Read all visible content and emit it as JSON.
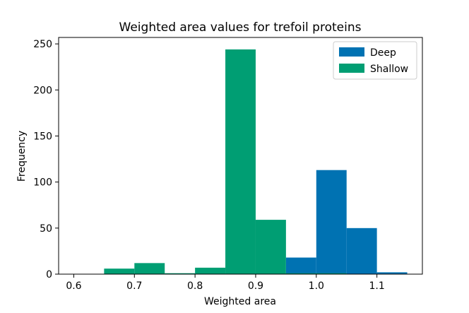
{
  "chart_data": {
    "type": "histogram",
    "title": "Weighted area values for trefoil proteins",
    "xlabel": "Weighted area",
    "ylabel": "Frequency",
    "xlim": [
      0.575,
      1.175
    ],
    "ylim": [
      0,
      257
    ],
    "xticks": [
      0.6,
      0.7,
      0.8,
      0.9,
      1.0,
      1.1
    ],
    "xtick_labels": [
      "0.6",
      "0.7",
      "0.8",
      "0.9",
      "1.0",
      "1.1"
    ],
    "yticks": [
      0,
      50,
      100,
      150,
      200,
      250
    ],
    "ytick_labels": [
      "0",
      "50",
      "100",
      "150",
      "200",
      "250"
    ],
    "legend_position": "top-right",
    "series": [
      {
        "name": "Deep",
        "color": "#0072B2",
        "bins": [
          {
            "x0": 0.95,
            "x1": 1.0,
            "value": 18
          },
          {
            "x0": 1.0,
            "x1": 1.05,
            "value": 113
          },
          {
            "x0": 1.05,
            "x1": 1.1,
            "value": 50
          },
          {
            "x0": 1.1,
            "x1": 1.15,
            "value": 2
          }
        ]
      },
      {
        "name": "Shallow",
        "color": "#009E73",
        "bins": [
          {
            "x0": 0.6,
            "x1": 0.65,
            "value": 0
          },
          {
            "x0": 0.65,
            "x1": 0.7,
            "value": 6
          },
          {
            "x0": 0.7,
            "x1": 0.75,
            "value": 12
          },
          {
            "x0": 0.75,
            "x1": 0.8,
            "value": 1
          },
          {
            "x0": 0.8,
            "x1": 0.85,
            "value": 7
          },
          {
            "x0": 0.85,
            "x1": 0.9,
            "value": 244
          },
          {
            "x0": 0.9,
            "x1": 0.95,
            "value": 59
          },
          {
            "x0": 0.95,
            "x1": 1.0,
            "value": 1
          },
          {
            "x0": 1.0,
            "x1": 1.05,
            "value": 1
          }
        ]
      }
    ]
  }
}
